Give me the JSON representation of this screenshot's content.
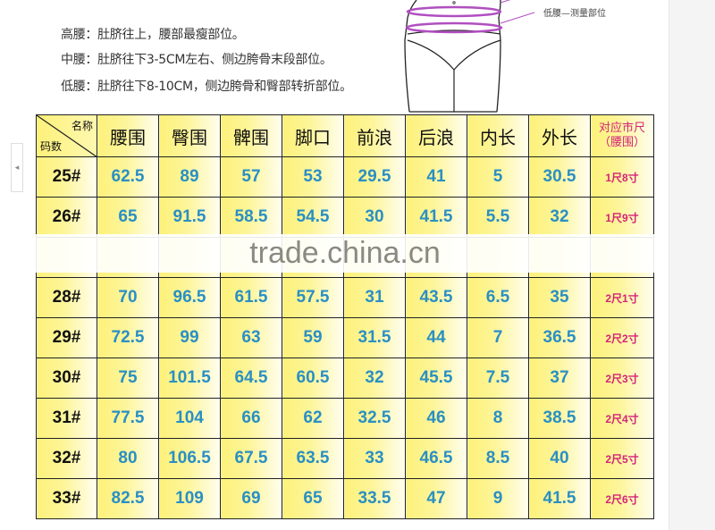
{
  "descriptions": [
    "高腰：肚脐往上，腰部最瘦部位。",
    "中腰：肚脐往下3-5CM左右、侧边胯骨末段部位。",
    "低腰：肚脐往下8-10CM，侧边胯骨和臀部转折部位。"
  ],
  "figure_label": "低腰—测量部位",
  "watermark": "trade.china.cn",
  "table": {
    "corner_top": "名称",
    "corner_bottom": "码数",
    "headers": [
      "腰围",
      "臀围",
      "髀围",
      "脚口",
      "前浪",
      "后浪",
      "内长",
      "外长"
    ],
    "last_header": [
      "对应市尺",
      "（腰围）"
    ],
    "rows": [
      {
        "size": "25#",
        "values": [
          "62.5",
          "89",
          "57",
          "53",
          "29.5",
          "41",
          "5",
          "30.5"
        ],
        "shichi": "1尺8寸"
      },
      {
        "size": "26#",
        "values": [
          "65",
          "91.5",
          "58.5",
          "54.5",
          "30",
          "41.5",
          "5.5",
          "32"
        ],
        "shichi": "1尺9寸"
      },
      {
        "size": "",
        "values": [
          "",
          "",
          "",
          "",
          "",
          "",
          "",
          ""
        ],
        "shichi": ""
      },
      {
        "size": "28#",
        "values": [
          "70",
          "96.5",
          "61.5",
          "57.5",
          "31",
          "43.5",
          "6.5",
          "35"
        ],
        "shichi": "2尺1寸"
      },
      {
        "size": "29#",
        "values": [
          "72.5",
          "99",
          "63",
          "59",
          "31.5",
          "44",
          "7",
          "36.5"
        ],
        "shichi": "2尺2寸"
      },
      {
        "size": "30#",
        "values": [
          "75",
          "101.5",
          "64.5",
          "60.5",
          "32",
          "45.5",
          "7.5",
          "37"
        ],
        "shichi": "2尺3寸"
      },
      {
        "size": "31#",
        "values": [
          "77.5",
          "104",
          "66",
          "62",
          "32.5",
          "46",
          "8",
          "38.5"
        ],
        "shichi": "2尺4寸"
      },
      {
        "size": "32#",
        "values": [
          "80",
          "106.5",
          "67.5",
          "63.5",
          "33",
          "46.5",
          "8.5",
          "40"
        ],
        "shichi": "2尺5寸"
      },
      {
        "size": "33#",
        "values": [
          "82.5",
          "109",
          "69",
          "65",
          "33.5",
          "47",
          "9",
          "41.5"
        ],
        "shichi": "2尺6寸"
      }
    ]
  },
  "colors": {
    "value_blue": "#2a8fc4",
    "shichi_pink": "#d4237a",
    "cell_yellow": "#fdf17a",
    "band_purple": "#b04fc0"
  }
}
